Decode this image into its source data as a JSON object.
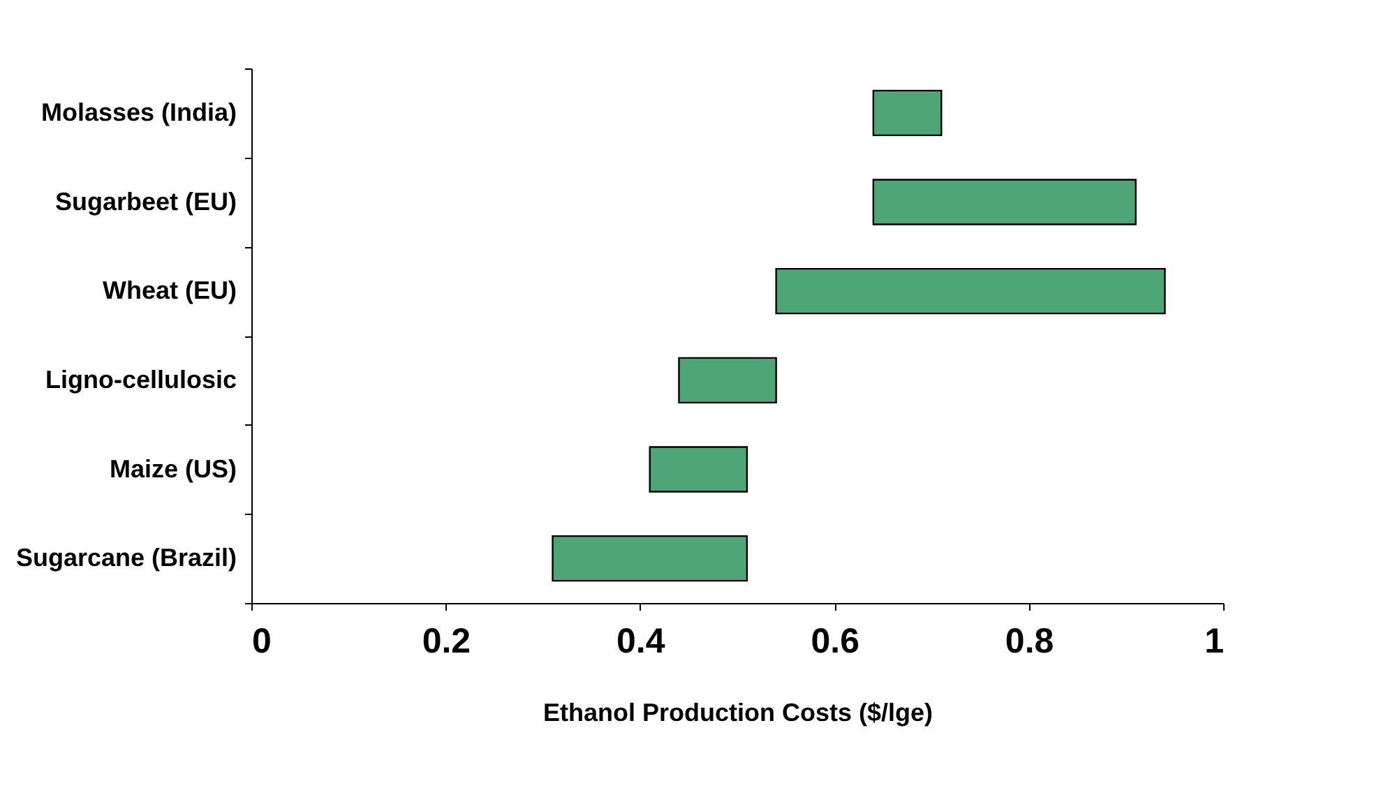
{
  "chart_data": {
    "type": "bar",
    "orientation": "horizontal",
    "xlabel": "Ethanol Production Costs ($/lge)",
    "categories": [
      "Molasses (India)",
      "Sugarbeet (EU)",
      "Wheat (EU)",
      "Ligno-cellulosic",
      "Maize (US)",
      "Sugarcane (Brazil)"
    ],
    "base": [
      0.64,
      0.64,
      0.54,
      0.44,
      0.41,
      0.31
    ],
    "values": [
      0.07,
      0.27,
      0.4,
      0.1,
      0.1,
      0.2
    ],
    "color": "#4ea677",
    "xlim": [
      0,
      1
    ],
    "xticks": [
      0,
      0.2,
      0.4,
      0.6,
      0.8,
      1
    ],
    "grid": false
  }
}
